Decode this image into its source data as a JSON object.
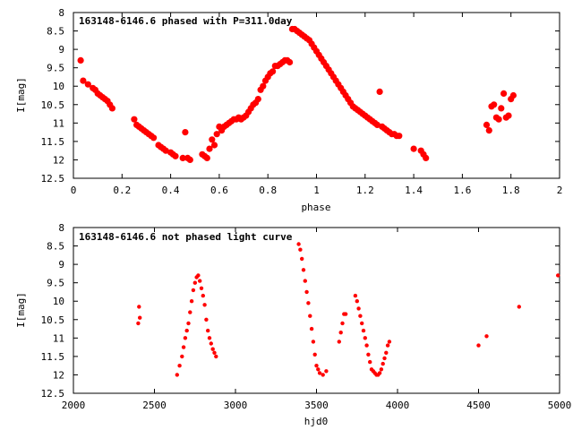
{
  "chart_data": [
    {
      "type": "scatter",
      "title": "163148-6146.6 phased with P=311.0day",
      "xlabel": "phase",
      "ylabel": "I[mag]",
      "xlim": [
        0,
        2
      ],
      "ylim": [
        12.5,
        8
      ],
      "y_inverted": true,
      "x_ticks": [
        "0",
        "0.2",
        "0.4",
        "0.6",
        "0.8",
        "1",
        "1.2",
        "1.4",
        "1.6",
        "1.8",
        "2"
      ],
      "y_ticks": [
        "8",
        "8.5",
        "9",
        "9.5",
        "10",
        "10.5",
        "11",
        "11.5",
        "12",
        "12.5"
      ],
      "grid": false,
      "marker_color": "#ff0000",
      "series": [
        {
          "x": [
            0.03,
            0.04,
            0.06,
            0.08,
            0.09,
            0.1,
            0.11,
            0.12,
            0.13,
            0.14,
            0.15,
            0.16,
            0.25,
            0.26,
            0.27,
            0.28,
            0.29,
            0.3,
            0.31,
            0.32,
            0.33,
            0.35,
            0.36,
            0.37,
            0.38,
            0.4,
            0.41,
            0.42,
            0.45,
            0.46,
            0.47,
            0.48,
            0.53,
            0.54,
            0.55,
            0.56,
            0.57,
            0.58,
            0.59,
            0.6,
            0.61,
            0.62,
            0.63,
            0.64,
            0.65,
            0.66,
            0.67,
            0.68,
            0.69,
            0.7,
            0.71,
            0.72,
            0.73,
            0.74,
            0.75,
            0.76,
            0.77,
            0.78,
            0.79,
            0.8,
            0.81,
            0.82,
            0.83,
            0.84,
            0.85,
            0.86,
            0.87,
            0.88,
            0.89,
            0.9,
            0.91,
            0.92,
            0.93,
            0.94,
            0.95,
            0.96,
            0.97,
            0.98,
            0.99,
            1.0,
            1.01,
            1.02,
            1.03,
            1.04,
            1.05,
            1.06,
            1.07,
            1.08,
            1.09,
            1.1,
            1.11,
            1.12,
            1.13,
            1.14,
            1.15,
            1.16,
            1.17,
            1.18,
            1.19,
            1.2,
            1.21,
            1.22,
            1.23,
            1.24,
            1.25,
            1.26,
            1.27,
            1.28,
            1.29,
            1.3,
            1.31,
            1.32,
            1.33,
            1.34,
            1.4,
            1.43,
            1.44,
            1.45,
            1.7,
            1.71,
            1.72,
            1.73,
            1.74,
            1.75,
            1.76,
            1.77,
            1.78,
            1.79,
            1.8,
            1.81
          ],
          "y": [
            9.3,
            9.85,
            9.95,
            10.05,
            10.1,
            10.2,
            10.25,
            10.3,
            10.35,
            10.4,
            10.5,
            10.6,
            10.9,
            11.05,
            11.1,
            11.15,
            11.2,
            11.25,
            11.3,
            11.35,
            11.4,
            11.6,
            11.65,
            11.7,
            11.75,
            11.8,
            11.85,
            11.9,
            11.95,
            11.25,
            11.95,
            12.0,
            11.85,
            11.9,
            11.95,
            11.7,
            11.45,
            11.6,
            11.3,
            11.1,
            11.2,
            11.1,
            11.05,
            11.0,
            10.95,
            10.9,
            10.9,
            10.85,
            10.9,
            10.85,
            10.8,
            10.7,
            10.6,
            10.5,
            10.45,
            10.35,
            10.1,
            10.0,
            9.85,
            9.75,
            9.65,
            9.6,
            9.45,
            9.45,
            9.4,
            9.35,
            9.3,
            9.3,
            9.35,
            8.45,
            8.45,
            8.5,
            8.55,
            8.6,
            8.65,
            8.7,
            8.75,
            8.85,
            8.95,
            9.05,
            9.15,
            9.25,
            9.35,
            9.45,
            9.55,
            9.65,
            9.75,
            9.85,
            9.95,
            10.05,
            10.15,
            10.25,
            10.35,
            10.45,
            10.55,
            10.6,
            10.65,
            10.7,
            10.75,
            10.8,
            10.85,
            10.9,
            10.95,
            11.0,
            11.05,
            10.15,
            11.1,
            11.15,
            11.2,
            11.25,
            11.3,
            11.3,
            11.35,
            11.35,
            11.7,
            11.75,
            11.85,
            11.95,
            11.05,
            11.2,
            10.55,
            10.5,
            10.85,
            10.9,
            10.6,
            10.2,
            10.85,
            10.8,
            10.35,
            10.25
          ]
        }
      ]
    },
    {
      "type": "scatter",
      "title": "163148-6146.6 not phased light curve",
      "xlabel": "hjd0",
      "ylabel": "I[mag]",
      "xlim": [
        2000,
        5000
      ],
      "ylim": [
        12.5,
        8
      ],
      "y_inverted": true,
      "x_ticks": [
        "2000",
        "2500",
        "3000",
        "3500",
        "4000",
        "4500",
        "5000"
      ],
      "y_ticks": [
        "8",
        "8.5",
        "9",
        "9.5",
        "10",
        "10.5",
        "11",
        "11.5",
        "12",
        "12.5"
      ],
      "grid": false,
      "marker_color": "#ff0000",
      "series": [
        {
          "x": [
            2400,
            2405,
            2410,
            2640,
            2655,
            2670,
            2680,
            2690,
            2700,
            2710,
            2720,
            2730,
            2740,
            2750,
            2760,
            2770,
            2780,
            2790,
            2800,
            2810,
            2820,
            2830,
            2840,
            2850,
            2860,
            2870,
            2880,
            3390,
            3400,
            3410,
            3420,
            3430,
            3440,
            3450,
            3460,
            3470,
            3480,
            3490,
            3500,
            3510,
            3520,
            3540,
            3560,
            3640,
            3650,
            3660,
            3670,
            3680,
            3740,
            3750,
            3760,
            3770,
            3780,
            3790,
            3800,
            3810,
            3820,
            3830,
            3840,
            3850,
            3860,
            3870,
            3880,
            3890,
            3900,
            3910,
            3920,
            3930,
            3940,
            3950,
            4500,
            4550,
            4750,
            4990
          ],
          "y": [
            10.6,
            10.15,
            10.45,
            12.0,
            11.75,
            11.5,
            11.25,
            11.0,
            10.8,
            10.6,
            10.3,
            10.0,
            9.7,
            9.5,
            9.35,
            9.3,
            9.45,
            9.65,
            9.85,
            10.1,
            10.5,
            10.8,
            11.0,
            11.15,
            11.3,
            11.4,
            11.5,
            8.45,
            8.6,
            8.85,
            9.15,
            9.45,
            9.75,
            10.05,
            10.4,
            10.75,
            11.1,
            11.45,
            11.75,
            11.85,
            11.95,
            12.0,
            11.9,
            11.1,
            10.85,
            10.6,
            10.35,
            10.35,
            9.85,
            10.0,
            10.2,
            10.4,
            10.6,
            10.8,
            11.0,
            11.2,
            11.45,
            11.65,
            11.85,
            11.9,
            11.95,
            12.0,
            12.0,
            11.95,
            11.85,
            11.7,
            11.55,
            11.4,
            11.2,
            11.1,
            11.2,
            10.95,
            10.15,
            9.3
          ]
        }
      ]
    }
  ]
}
